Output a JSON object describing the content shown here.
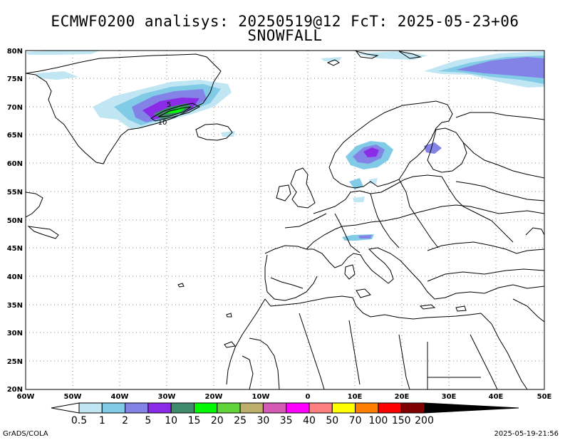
{
  "header": {
    "title_line1": "ECMWF0200 analisys: 20250519@12 FcT: 2025-05-23+06",
    "title_line2": "SNOWFALL"
  },
  "map": {
    "lon_labels": [
      "60W",
      "50W",
      "40W",
      "30W",
      "20W",
      "10W",
      "0",
      "10E",
      "20E",
      "30E",
      "40E",
      "50E"
    ],
    "lat_labels": [
      "20N",
      "25N",
      "30N",
      "35N",
      "40N",
      "45N",
      "50N",
      "55N",
      "60N",
      "65N",
      "70N",
      "75N",
      "80N"
    ],
    "contour_labels": [
      "5",
      "10"
    ]
  },
  "colorbar": {
    "labels": [
      "0.5",
      "1",
      "2",
      "5",
      "10",
      "15",
      "20",
      "25",
      "30",
      "35",
      "40",
      "50",
      "70",
      "100",
      "150",
      "200"
    ],
    "colors": [
      "#ffffff",
      "#bfe6f2",
      "#82cbe7",
      "#8383e7",
      "#8b2be8",
      "#408a6e",
      "#00f800",
      "#5fd53a",
      "#bdae6b",
      "#d35bb4",
      "#ff00ff",
      "#ff8080",
      "#ffff00",
      "#ff8000",
      "#ff0000",
      "#800000",
      "#000000"
    ]
  },
  "footer": {
    "left": "GrADS/COLA",
    "right": "2025-05-19-21:56"
  }
}
